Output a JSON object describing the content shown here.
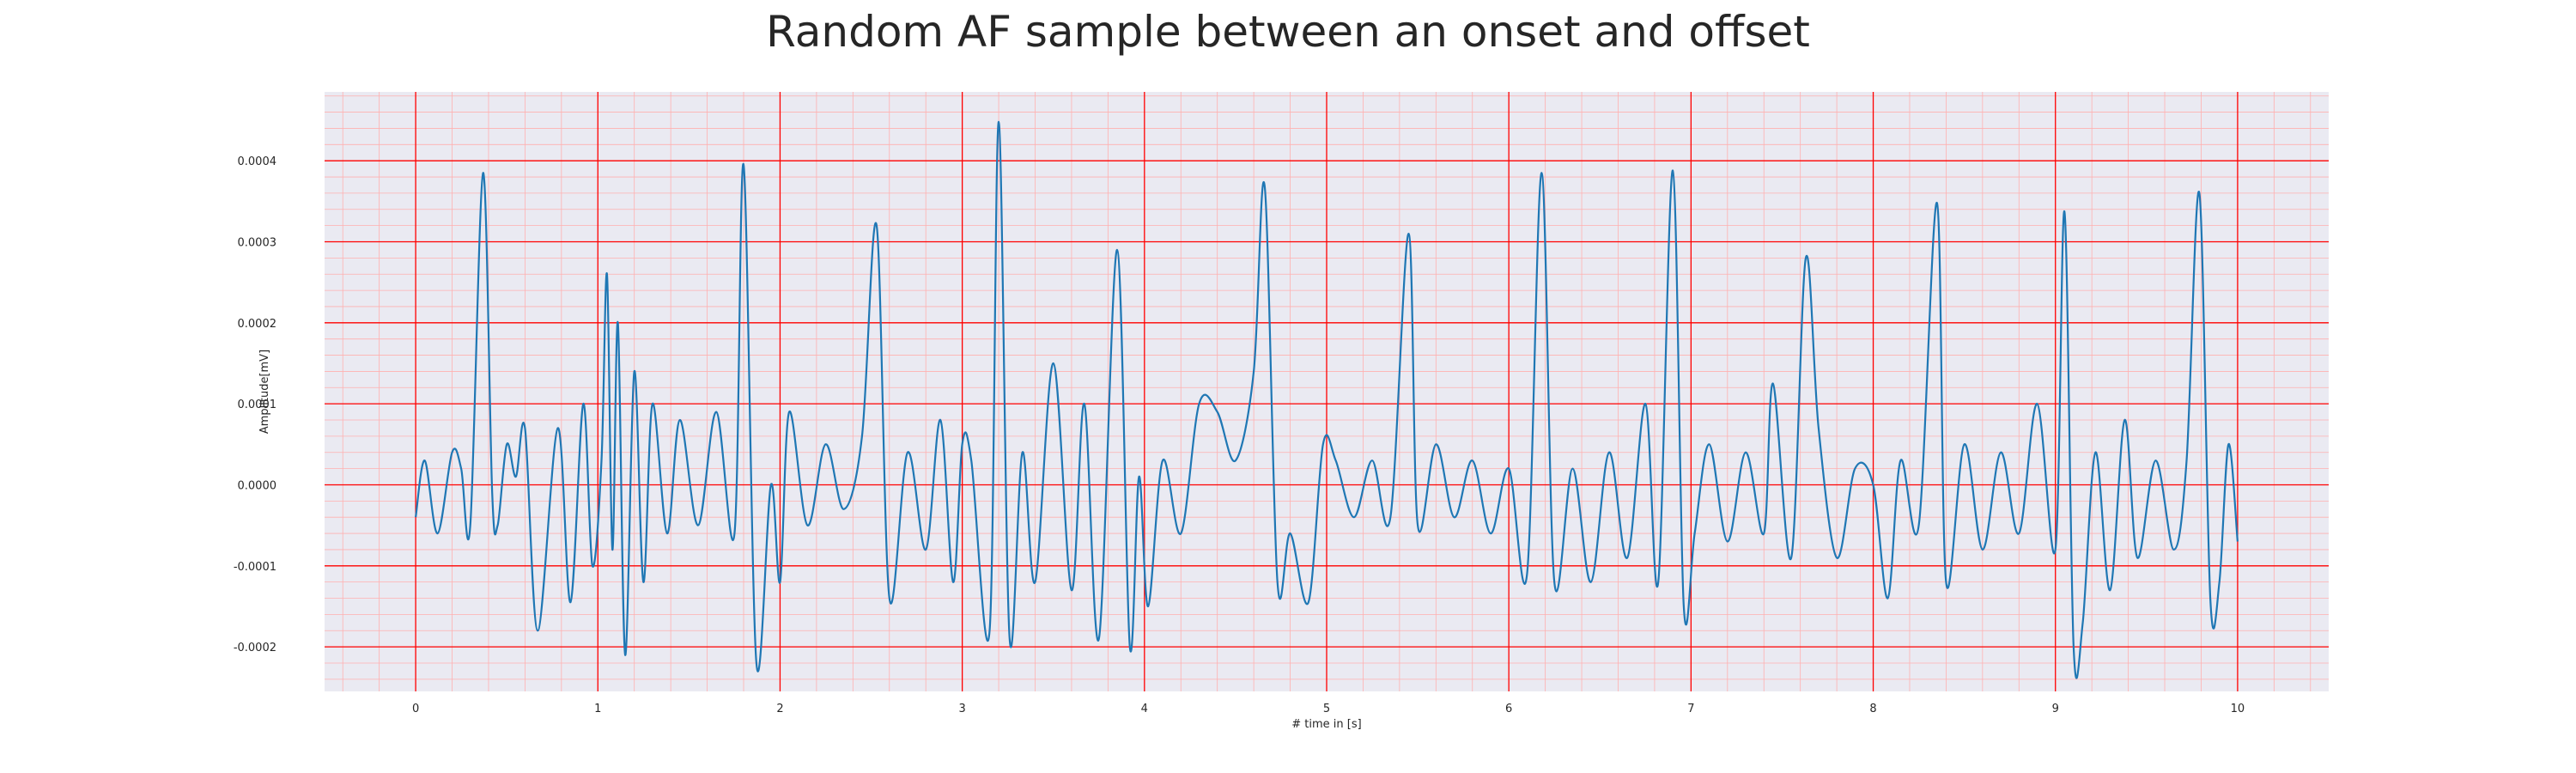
{
  "chart_data": {
    "type": "line",
    "title": "Random AF sample between an onset and offset",
    "xlabel": "# time in [s]",
    "ylabel": "Amplitude[mV]",
    "xlim": [
      -0.5,
      10.5
    ],
    "ylim": [
      -0.000255,
      0.000485
    ],
    "x_ticks": [
      0,
      1,
      2,
      3,
      4,
      5,
      6,
      7,
      8,
      9,
      10
    ],
    "y_ticks": [
      -0.0002,
      -0.0001,
      0.0,
      0.0001,
      0.0002,
      0.0003,
      0.0004
    ],
    "y_tick_labels": [
      "-0.0002",
      "-0.0001",
      "0.0000",
      "0.0001",
      "0.0002",
      "0.0003",
      "0.0004"
    ],
    "grid": true,
    "legend": "none",
    "colors": {
      "line": "#1f77b4",
      "major_grid": "#ff0000",
      "minor_grid": "#ffb0b0",
      "background": "#eaeaf2"
    },
    "series": [
      {
        "x": [
          0.0,
          0.05,
          0.12,
          0.2,
          0.25,
          0.3,
          0.37,
          0.42,
          0.45,
          0.5,
          0.55,
          0.6,
          0.67,
          0.78,
          0.85,
          0.92,
          0.97,
          1.02,
          1.05,
          1.08,
          1.11,
          1.15,
          1.2,
          1.25,
          1.3,
          1.38,
          1.45,
          1.55,
          1.65,
          1.75,
          1.8,
          1.87,
          1.95,
          2.0,
          2.05,
          2.15,
          2.25,
          2.35,
          2.45,
          2.53,
          2.6,
          2.7,
          2.8,
          2.88,
          2.95,
          3.0,
          3.05,
          3.15,
          3.2,
          3.26,
          3.33,
          3.4,
          3.5,
          3.6,
          3.67,
          3.75,
          3.85,
          3.92,
          3.97,
          4.02,
          4.1,
          4.2,
          4.3,
          4.4,
          4.5,
          4.6,
          4.66,
          4.73,
          4.8,
          4.9,
          4.98,
          5.05,
          5.15,
          5.25,
          5.35,
          5.45,
          5.5,
          5.6,
          5.7,
          5.8,
          5.9,
          6.0,
          6.1,
          6.18,
          6.25,
          6.35,
          6.45,
          6.55,
          6.65,
          6.75,
          6.82,
          6.9,
          6.96,
          7.02,
          7.1,
          7.2,
          7.3,
          7.4,
          7.45,
          7.55,
          7.63,
          7.7,
          7.8,
          7.9,
          8.0,
          8.08,
          8.15,
          8.25,
          8.35,
          8.4,
          8.5,
          8.6,
          8.7,
          8.8,
          8.9,
          9.0,
          9.05,
          9.1,
          9.15,
          9.22,
          9.3,
          9.38,
          9.45,
          9.55,
          9.65,
          9.72,
          9.79,
          9.85,
          9.9,
          9.95,
          10.0
        ],
        "y": [
          -4e-05,
          3e-05,
          -6e-05,
          4e-05,
          2e-05,
          -5e-05,
          0.000385,
          -1e-05,
          -5e-05,
          5e-05,
          1e-05,
          7e-05,
          -0.00018,
          7e-05,
          -0.000145,
          0.0001,
          -0.0001,
          3e-05,
          0.00026,
          -8e-05,
          0.0002,
          -0.00021,
          0.00014,
          -0.00012,
          0.0001,
          -6e-05,
          8e-05,
          -5e-05,
          9e-05,
          -6e-05,
          0.000395,
          -0.00022,
          0.0,
          -0.00012,
          9e-05,
          -5e-05,
          5e-05,
          -3e-05,
          6e-05,
          0.00032,
          -0.00014,
          4e-05,
          -8e-05,
          8e-05,
          -0.00012,
          5e-05,
          3e-05,
          -0.00018,
          0.000448,
          -0.00019,
          4e-05,
          -0.00012,
          0.00015,
          -0.00013,
          0.0001,
          -0.00019,
          0.00029,
          -0.0002,
          1e-05,
          -0.00015,
          3e-05,
          -6e-05,
          0.0001,
          9e-05,
          3e-05,
          0.00014,
          0.000368,
          -0.00012,
          -6e-05,
          -0.000145,
          5e-05,
          3e-05,
          -4e-05,
          3e-05,
          -4e-05,
          0.00031,
          -5e-05,
          5e-05,
          -4e-05,
          3e-05,
          -6e-05,
          2e-05,
          -0.00011,
          0.000385,
          -0.00012,
          2e-05,
          -0.00012,
          4e-05,
          -9e-05,
          0.0001,
          -0.00012,
          0.000388,
          -0.00015,
          -6e-05,
          5e-05,
          -7e-05,
          4e-05,
          -6e-05,
          0.000125,
          -9e-05,
          0.00028,
          7e-05,
          -9e-05,
          2e-05,
          0.0,
          -0.00014,
          3e-05,
          -5e-05,
          0.000348,
          -0.00012,
          5e-05,
          -8e-05,
          4e-05,
          -6e-05,
          0.0001,
          -8e-05,
          0.000337,
          -0.0002,
          -0.00017,
          4e-05,
          -0.00013,
          8e-05,
          -9e-05,
          3e-05,
          -8e-05,
          3e-05,
          0.00036,
          -0.00014,
          -0.00012,
          5e-05,
          -7e-05
        ]
      }
    ]
  }
}
